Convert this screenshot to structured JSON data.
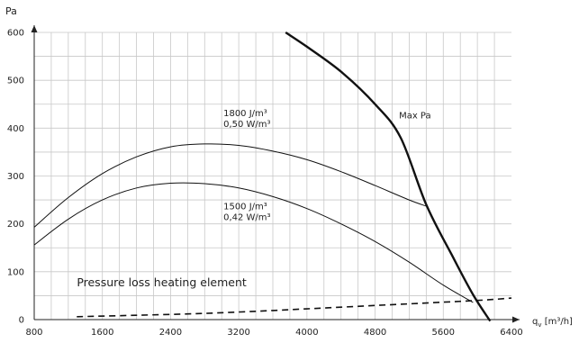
{
  "chart_data": {
    "type": "line",
    "title": "",
    "ylabel": "Pa",
    "xlabel_main": "q",
    "xlabel_sub": "v",
    "xlabel_unit": " [m³/h]",
    "xlim": [
      800,
      6400
    ],
    "ylim": [
      0,
      600
    ],
    "x_ticks": [
      800,
      1600,
      2400,
      3200,
      4000,
      4800,
      5600,
      6400
    ],
    "y_ticks": [
      0,
      100,
      200,
      300,
      400,
      500,
      600
    ],
    "grid": true,
    "series": [
      {
        "key": "curve_1800",
        "style": "thin",
        "x": [
          800,
          1200,
          1600,
          2000,
          2400,
          2800,
          3200,
          3600,
          4000,
          4400,
          4800,
          5200,
          5400
        ],
        "y": [
          193,
          255,
          305,
          340,
          361,
          367,
          364,
          352,
          334,
          309,
          280,
          250,
          237
        ]
      },
      {
        "key": "curve_1500",
        "style": "thin",
        "x": [
          800,
          1200,
          1600,
          2000,
          2400,
          2800,
          3200,
          3600,
          4000,
          4400,
          4800,
          5200,
          5600,
          5950
        ],
        "y": [
          156,
          210,
          250,
          275,
          285,
          284,
          275,
          257,
          232,
          200,
          163,
          120,
          72,
          36
        ]
      },
      {
        "key": "max_pa",
        "name": "Max Pa",
        "style": "thick",
        "x": [
          3750,
          4000,
          4400,
          4800,
          5100,
          5400,
          5700,
          5950,
          6150
        ],
        "y": [
          600,
          570,
          518,
          450,
          380,
          240,
          135,
          52,
          -3
        ]
      },
      {
        "key": "pressure_loss",
        "name": "Pressure loss heating element",
        "style": "dashed",
        "x": [
          1300,
          2000,
          2800,
          3600,
          4400,
          5200,
          6000,
          6400
        ],
        "y": [
          6,
          9,
          13,
          19,
          26,
          33,
          40,
          45
        ]
      }
    ],
    "annotations": [
      {
        "lines": [
          "1800 J/m³",
          "0,50 W/m³"
        ],
        "x": 3020,
        "y": 425
      },
      {
        "lines": [
          "1500 J/m³",
          "0,42 W/m³"
        ],
        "x": 3020,
        "y": 230
      },
      {
        "lines": [
          "Max Pa"
        ],
        "x": 5080,
        "y": 420
      },
      {
        "lines": [
          "Pressure loss heating element"
        ],
        "x": 1300,
        "y": 70
      }
    ]
  }
}
